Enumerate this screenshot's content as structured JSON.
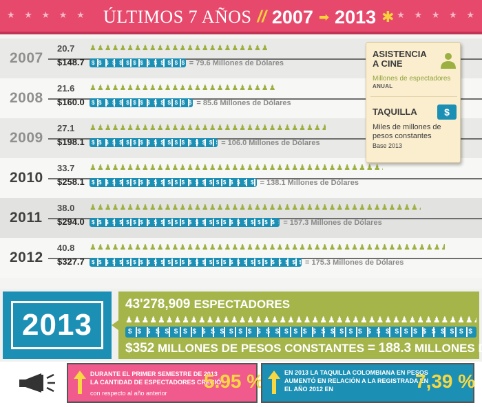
{
  "header": {
    "stars_left": "★ ★ ★ ★ ★",
    "stars_right": "★ ★ ★ ★ ★",
    "title": "ÚLTIMOS 7 AÑOS",
    "separator": "//",
    "year_from": "2007",
    "arrow": "➡",
    "year_to": "2013",
    "asterisk": "✱"
  },
  "legend": {
    "attendance_title": "ASISTENCIA A CINE",
    "attendance_unit": "Millones de espectadores",
    "attendance_note": "ANUAL",
    "attendance_icon": "person-icon",
    "box_title": "TAQUILLA",
    "box_unit": "Miles de millones de pesos constantes",
    "box_note": "Base 2013",
    "box_icon": "ticket-dollar-icon"
  },
  "chart_data": {
    "type": "bar",
    "categories": [
      "2007",
      "2008",
      "2009",
      "2010",
      "2011",
      "2012"
    ],
    "series": [
      {
        "name": "ASISTENCIA A CINE",
        "values": [
          20.7,
          21.6,
          27.1,
          33.7,
          38.0,
          40.8
        ],
        "labels": [
          "20.7",
          "21.6",
          "27.1",
          "33.7",
          "38.0",
          "40.8"
        ]
      },
      {
        "name": "TAQUILLA",
        "values": [
          148.7,
          160.0,
          198.1,
          258.1,
          294.0,
          327.7
        ],
        "labels": [
          "$148.7",
          "$160.0",
          "$198.1",
          "$258.1",
          "$294.0",
          "$327.7"
        ],
        "usd_labels": [
          "= 79.6 Millones de Dólares",
          "= 85.6 Millones de Dólares",
          "= 106.0 Millones de Dólares",
          "= 138.1 Millones de Dólares",
          "= 157.3 Millones de Dólares",
          "= 175.3 Millones de Dólares"
        ]
      }
    ],
    "dimmed_years": [
      "2007",
      "2008",
      "2009"
    ],
    "colors": {
      "attendance": "#9cb041",
      "box_office": "#1c8fb5",
      "header": "#e6496c",
      "accent": "#f6d33c"
    }
  },
  "summary_2013": {
    "year": "2013",
    "spectators_number": "43'278,909",
    "spectators_word": "ESPECTADORES",
    "money_amount": "$352",
    "money_word_cop": "MILLONES DE PESOS CONSTANTES",
    "equals": "=",
    "money_amount_usd": "188.3",
    "money_word_usd": "MILLONES DE DÓLARES"
  },
  "stats": [
    {
      "lines": [
        "DURANTE EL PRIMER SEMESTRE DE 2013",
        "LA CANTIDAD DE ESPECTADORES CRECIÓ"
      ],
      "subline": "con respecto al año anterior",
      "percent": "5.95 %"
    },
    {
      "lines": [
        "EN 2013 LA TAQUILLA COLOMBIANA EN PESOS",
        "AUMENTÓ EN RELACIÓN A LA REGISTRADA EN",
        "EL AÑO 2012 EN"
      ],
      "percent": "7,39 %"
    }
  ]
}
